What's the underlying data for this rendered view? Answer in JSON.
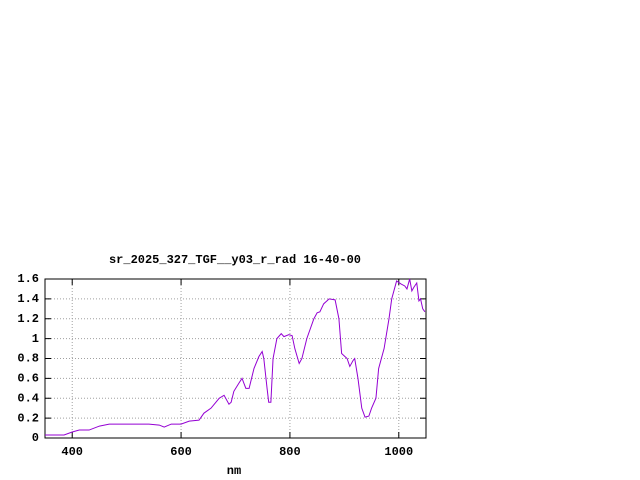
{
  "chart_data": {
    "type": "line",
    "title": "sr_2025_327_TGF__y03_r_rad 16-40-00",
    "x_label": "nm",
    "x": [
      350,
      385,
      400,
      413,
      431,
      450,
      468,
      505,
      541,
      560,
      569,
      582,
      600,
      615,
      633,
      642,
      655,
      670,
      679,
      688,
      692,
      697,
      706,
      712,
      719,
      725,
      734,
      743,
      749,
      752,
      758,
      761,
      765,
      769,
      776,
      784,
      789,
      798,
      804,
      809,
      817,
      822,
      831,
      844,
      850,
      855,
      862,
      872,
      883,
      890,
      895,
      905,
      910,
      916,
      919,
      925,
      932,
      938,
      945,
      950,
      958,
      963,
      973,
      982,
      987,
      996,
      1004,
      1011,
      1015,
      1020,
      1024,
      1028,
      1033,
      1037,
      1040,
      1044,
      1048
    ],
    "series": [
      {
        "color": "#9400d3",
        "values": [
          0.03,
          0.03,
          0.06,
          0.08,
          0.08,
          0.12,
          0.14,
          0.14,
          0.14,
          0.13,
          0.11,
          0.14,
          0.14,
          0.17,
          0.18,
          0.25,
          0.3,
          0.4,
          0.43,
          0.34,
          0.36,
          0.47,
          0.55,
          0.6,
          0.5,
          0.5,
          0.7,
          0.82,
          0.87,
          0.8,
          0.5,
          0.36,
          0.36,
          0.8,
          1.0,
          1.05,
          1.02,
          1.04,
          1.03,
          0.9,
          0.75,
          0.8,
          1.0,
          1.2,
          1.26,
          1.27,
          1.35,
          1.4,
          1.39,
          1.2,
          0.85,
          0.8,
          0.72,
          0.78,
          0.8,
          0.6,
          0.3,
          0.21,
          0.22,
          0.3,
          0.4,
          0.7,
          0.9,
          1.2,
          1.4,
          1.58,
          1.55,
          1.53,
          1.5,
          1.6,
          1.48,
          1.52,
          1.56,
          1.38,
          1.4,
          1.3,
          1.27
        ]
      }
    ],
    "xlim": [
      350,
      1050
    ],
    "xticks": [
      400,
      600,
      800,
      1000
    ],
    "ylim": [
      0,
      1.6
    ],
    "yticks": [
      0,
      0.2,
      0.4,
      0.6,
      0.8,
      1,
      1.2,
      1.4,
      1.6
    ],
    "grid": true
  }
}
